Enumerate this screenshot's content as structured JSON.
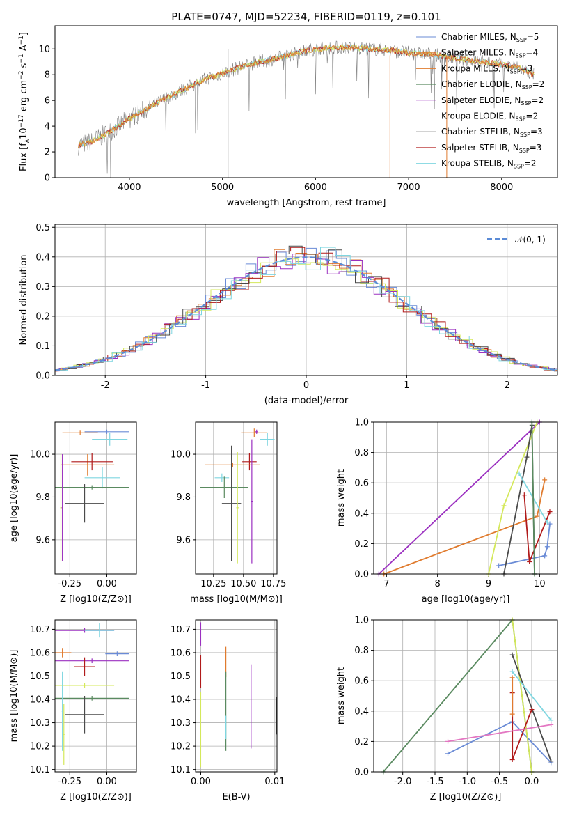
{
  "figure_title": "PLATE=0747, MJD=52234, FIBERID=0119, z=0.101",
  "models": [
    {
      "name": "Chabrier MILES, N",
      "sub": "SSP",
      "n": "=5",
      "color": "#6a8bd6"
    },
    {
      "name": "Salpeter MILES, N",
      "sub": "SSP",
      "n": "=4",
      "color": "#e07b2e"
    },
    {
      "name": "Kroupa MILES, N",
      "sub": "SSP",
      "n": "=3",
      "color": "#e07b2e"
    },
    {
      "name": "Chabrier ELODIE, N",
      "sub": "SSP",
      "n": "=2",
      "color": "#5a8a60"
    },
    {
      "name": "Salpeter ELODIE, N",
      "sub": "SSP",
      "n": "=2",
      "color": "#9b30c0"
    },
    {
      "name": "Kroupa ELODIE, N",
      "sub": "SSP",
      "n": "=2",
      "color": "#d4e85a"
    },
    {
      "name": "Chabrier STELIB, N",
      "sub": "SSP",
      "n": "=3",
      "color": "#4a4a4a"
    },
    {
      "name": "Salpeter STELIB, N",
      "sub": "SSP",
      "n": "=3",
      "color": "#b01a1a"
    },
    {
      "name": "Kroupa STELIB, N",
      "sub": "SSP",
      "n": "=2",
      "color": "#7fd6e0"
    }
  ],
  "chart_data": [
    {
      "id": "spectrum",
      "type": "line",
      "xlabel": "wavelength [Angstrom, rest frame]",
      "ylabel": "Flux [f_λ 10^-17 erg cm^-2 s^-1 A^-1]",
      "xlim": [
        3200,
        8600
      ],
      "ylim": [
        0,
        11.8
      ],
      "xticks": [
        4000,
        5000,
        6000,
        7000,
        8000
      ],
      "yticks": [
        0,
        2,
        4,
        6,
        8,
        10
      ],
      "continuum_x": [
        3450,
        3600,
        3800,
        4000,
        4200,
        4400,
        4600,
        4800,
        5000,
        5200,
        5400,
        5600,
        5800,
        6000,
        6200,
        6400,
        6600,
        6800,
        7000,
        7200,
        7400,
        7600,
        7800,
        8000,
        8200,
        8350
      ],
      "continuum_y": [
        2.5,
        2.8,
        3.6,
        4.6,
        5.4,
        6.2,
        6.9,
        7.6,
        8.1,
        8.6,
        9.0,
        9.3,
        9.7,
        10.0,
        10.1,
        10.1,
        10.0,
        9.9,
        9.7,
        9.6,
        9.4,
        9.2,
        9.0,
        8.8,
        8.5,
        8.0
      ],
      "grid": false
    },
    {
      "id": "residuals",
      "type": "histogram",
      "xlabel": "(data-model)/error",
      "ylabel": "Normed distribution",
      "xlim": [
        -2.5,
        2.5
      ],
      "ylim": [
        0,
        0.51
      ],
      "xticks": [
        -2,
        -1,
        0,
        1,
        2
      ],
      "yticks": [
        0.0,
        0.1,
        0.2,
        0.3,
        0.4,
        0.5
      ],
      "legend": "𝒩(0, 1)",
      "legend_position": "top-right",
      "grid": true,
      "reference_curve": "gaussian mean 0 sigma 1"
    },
    {
      "id": "age_vs_Z",
      "type": "scatter",
      "xlabel": "Z [log10(Z/Z⊙)]",
      "ylabel": "age  [log10(age/yr)]",
      "xlim": [
        -0.35,
        0.2
      ],
      "ylim": [
        9.44,
        10.15
      ],
      "xticks": [
        -0.25,
        0.0
      ],
      "yticks": [
        9.6,
        9.8,
        10.0
      ],
      "grid": true,
      "points": [
        {
          "x": 0.0,
          "y": 10.105,
          "xerr": 0.15,
          "yerr": 0.01,
          "c": 0
        },
        {
          "x": -0.18,
          "y": 10.1,
          "xerr": 0.12,
          "yerr": 0.01,
          "c": 1
        },
        {
          "x": 0.02,
          "y": 10.07,
          "xerr": 0.12,
          "yerr": 0.03,
          "c": 8
        },
        {
          "x": -0.13,
          "y": 9.95,
          "xerr": 0.18,
          "yerr": 0.05,
          "c": 1
        },
        {
          "x": -0.1,
          "y": 9.965,
          "xerr": 0.14,
          "yerr": 0.04,
          "c": 7
        },
        {
          "x": -0.03,
          "y": 9.89,
          "xerr": 0.12,
          "yerr": 0.05,
          "c": 8
        },
        {
          "x": -0.1,
          "y": 9.845,
          "xerr": 0.25,
          "yerr": 0.01,
          "c": 3
        },
        {
          "x": -0.15,
          "y": 9.77,
          "xerr": 0.13,
          "yerr": 0.09,
          "c": 6
        },
        {
          "x": -0.31,
          "y": 9.75,
          "xerr": 0.005,
          "yerr": 0.25,
          "c": 5
        },
        {
          "x": -0.3,
          "y": 9.75,
          "xerr": 0.005,
          "yerr": 0.25,
          "c": 4
        }
      ]
    },
    {
      "id": "age_vs_mass",
      "type": "scatter",
      "xlabel": "mass [log10(M/M⊙)]",
      "ylabel": "",
      "xlim": [
        10.1,
        10.78
      ],
      "ylim": [
        9.44,
        10.15
      ],
      "xticks": [
        10.25,
        10.5,
        10.75
      ],
      "yticks": [
        9.6,
        9.8,
        10.0
      ],
      "grid": true,
      "points": [
        {
          "x": 10.59,
          "y": 10.1,
          "xerr": 0.11,
          "yerr": 0.02,
          "c": 1
        },
        {
          "x": 10.61,
          "y": 10.105,
          "xerr": 0.01,
          "yerr": 0.01,
          "c": 4
        },
        {
          "x": 10.7,
          "y": 10.07,
          "xerr": 0.06,
          "yerr": 0.03,
          "c": 8
        },
        {
          "x": 10.55,
          "y": 9.965,
          "xerr": 0.06,
          "yerr": 0.04,
          "c": 7
        },
        {
          "x": 10.41,
          "y": 9.95,
          "xerr": 0.23,
          "yerr": 0.01,
          "c": 1
        },
        {
          "x": 10.32,
          "y": 9.89,
          "xerr": 0.06,
          "yerr": 0.02,
          "c": 8
        },
        {
          "x": 10.34,
          "y": 9.845,
          "xerr": 0.2,
          "yerr": 0.05,
          "c": 3
        },
        {
          "x": 10.4,
          "y": 9.77,
          "xerr": 0.08,
          "yerr": 0.27,
          "c": 6
        },
        {
          "x": 10.45,
          "y": 9.75,
          "xerr": 0.01,
          "yerr": 0.26,
          "c": 5
        },
        {
          "x": 10.57,
          "y": 9.78,
          "xerr": 0.01,
          "yerr": 0.29,
          "c": 4
        }
      ]
    },
    {
      "id": "massweight_vs_age",
      "type": "line",
      "xlabel": "age  [log10(age/yr)]",
      "ylabel": "mass weight",
      "xlim": [
        6.75,
        10.35
      ],
      "ylim": [
        0,
        1
      ],
      "xticks": [
        7,
        8,
        9,
        10
      ],
      "yticks": [
        0.0,
        0.2,
        0.4,
        0.6,
        0.8,
        1.0
      ],
      "grid": true,
      "series": [
        {
          "c": 0,
          "x": [
            9.2,
            10.1,
            10.15,
            10.2
          ],
          "y": [
            0.055,
            0.12,
            0.18,
            0.33
          ]
        },
        {
          "c": 1,
          "x": [
            6.95,
            9.95,
            10.1
          ],
          "y": [
            0.0,
            0.38,
            0.62
          ]
        },
        {
          "c": 4,
          "x": [
            6.85,
            10.0
          ],
          "y": [
            0.0,
            1.0
          ]
        },
        {
          "c": 5,
          "x": [
            9.0,
            9.3,
            9.95
          ],
          "y": [
            0.0,
            0.45,
            1.0
          ]
        },
        {
          "c": 6,
          "x": [
            9.3,
            9.75,
            9.85,
            9.9
          ],
          "y": [
            0.0,
            0.77,
            0.98,
            0.0
          ]
        },
        {
          "c": 7,
          "x": [
            9.7,
            9.8,
            10.2
          ],
          "y": [
            0.52,
            0.08,
            0.41
          ]
        },
        {
          "c": 8,
          "x": [
            9.6,
            10.15
          ],
          "y": [
            0.66,
            0.34
          ]
        },
        {
          "c": 3,
          "x": [
            9.85,
            9.9
          ],
          "y": [
            1.0,
            0.0
          ]
        }
      ]
    },
    {
      "id": "mass_vs_Z",
      "type": "scatter",
      "xlabel": "Z [log10(Z/Z⊙)]",
      "ylabel": "mass [log10(M/M⊙)]",
      "xlim": [
        -0.35,
        0.2
      ],
      "ylim": [
        10.09,
        10.74
      ],
      "xticks": [
        -0.25,
        0.0
      ],
      "yticks": [
        10.1,
        10.2,
        10.3,
        10.4,
        10.5,
        10.6,
        10.7
      ],
      "grid": true,
      "points": [
        {
          "x": -0.15,
          "y": 10.695,
          "xerr": 0.2,
          "yerr": 0.01,
          "c": 4
        },
        {
          "x": -0.05,
          "y": 10.695,
          "xerr": 0.1,
          "yerr": 0.03,
          "c": 8
        },
        {
          "x": -0.3,
          "y": 10.6,
          "xerr": 0.06,
          "yerr": 0.02,
          "c": 1
        },
        {
          "x": 0.07,
          "y": 10.595,
          "xerr": 0.08,
          "yerr": 0.01,
          "c": 0
        },
        {
          "x": -0.1,
          "y": 10.565,
          "xerr": 0.25,
          "yerr": 0.01,
          "c": 4
        },
        {
          "x": -0.15,
          "y": 10.54,
          "xerr": 0.07,
          "yerr": 0.04,
          "c": 7
        },
        {
          "x": -0.15,
          "y": 10.46,
          "xerr": 0.2,
          "yerr": 0.01,
          "c": 5
        },
        {
          "x": -0.1,
          "y": 10.405,
          "xerr": 0.25,
          "yerr": 0.01,
          "c": 3
        },
        {
          "x": -0.15,
          "y": 10.335,
          "xerr": 0.13,
          "yerr": 0.08,
          "c": 6
        },
        {
          "x": -0.3,
          "y": 10.35,
          "xerr": 0.005,
          "yerr": 0.17,
          "c": 8
        },
        {
          "x": -0.29,
          "y": 10.25,
          "xerr": 0.005,
          "yerr": 0.13,
          "c": 5
        }
      ]
    },
    {
      "id": "mass_vs_EBV",
      "type": "scatter",
      "xlabel": "E(B-V)",
      "ylabel": "",
      "xlim": [
        -0.0007,
        0.0103
      ],
      "ylim": [
        10.09,
        10.74
      ],
      "xticks": [
        0.0,
        0.01
      ],
      "yticks": [
        10.1,
        10.2,
        10.3,
        10.4,
        10.5,
        10.6,
        10.7
      ],
      "grid": true,
      "points": [
        {
          "x": 0.0,
          "y": 10.68,
          "xerr": 0,
          "yerr": 0.05,
          "c": 4
        },
        {
          "x": 0.0,
          "y": 10.52,
          "xerr": 0,
          "yerr": 0.07,
          "c": 7
        },
        {
          "x": 0.0,
          "y": 10.27,
          "xerr": 0,
          "yerr": 0.16,
          "c": 5
        },
        {
          "x": 0.0034,
          "y": 10.56,
          "xerr": 0,
          "yerr": 0.065,
          "c": 1
        },
        {
          "x": 0.0034,
          "y": 10.35,
          "xerr": 0,
          "yerr": 0.17,
          "c": 3
        },
        {
          "x": 0.0034,
          "y": 10.28,
          "xerr": 0,
          "yerr": 0.05,
          "c": 8
        },
        {
          "x": 0.0068,
          "y": 10.37,
          "xerr": 0,
          "yerr": 0.18,
          "c": 4
        },
        {
          "x": 0.0102,
          "y": 10.33,
          "xerr": 0,
          "yerr": 0.08,
          "c": 6
        }
      ]
    },
    {
      "id": "massweight_vs_Z",
      "type": "line",
      "xlabel": "Z [log10(Z/Z⊙)]",
      "ylabel": "mass weight",
      "xlim": [
        -2.45,
        0.4
      ],
      "ylim": [
        0,
        1
      ],
      "xticks": [
        -2.0,
        -1.5,
        -1.0,
        -0.5,
        0.0
      ],
      "yticks": [
        0.0,
        0.2,
        0.4,
        0.6,
        0.8,
        1.0
      ],
      "grid": true,
      "series": [
        {
          "c": 0,
          "x": [
            -1.3,
            -0.3,
            0.3
          ],
          "y": [
            0.12,
            0.33,
            0.06
          ]
        },
        {
          "c": 3,
          "x": [
            -2.3,
            -0.3,
            0.0
          ],
          "y": [
            0.0,
            1.0,
            0.0
          ]
        },
        {
          "c": 5,
          "x": [
            -0.3,
            0.0
          ],
          "y": [
            1.0,
            0.0
          ]
        },
        {
          "c": 6,
          "x": [
            -0.3,
            0.3
          ],
          "y": [
            0.77,
            0.07
          ]
        },
        {
          "c": 7,
          "x": [
            -0.3,
            -0.3,
            0.0
          ],
          "y": [
            0.52,
            0.08,
            0.41
          ]
        },
        {
          "c": 8,
          "x": [
            -0.3,
            0.3
          ],
          "y": [
            0.66,
            0.34
          ]
        },
        {
          "c": 1,
          "x": [
            -0.3,
            -0.3
          ],
          "y": [
            0.62,
            0.38
          ]
        },
        {
          "c": "pink",
          "x": [
            -1.3,
            0.3
          ],
          "y": [
            0.2,
            0.31
          ]
        }
      ]
    }
  ]
}
